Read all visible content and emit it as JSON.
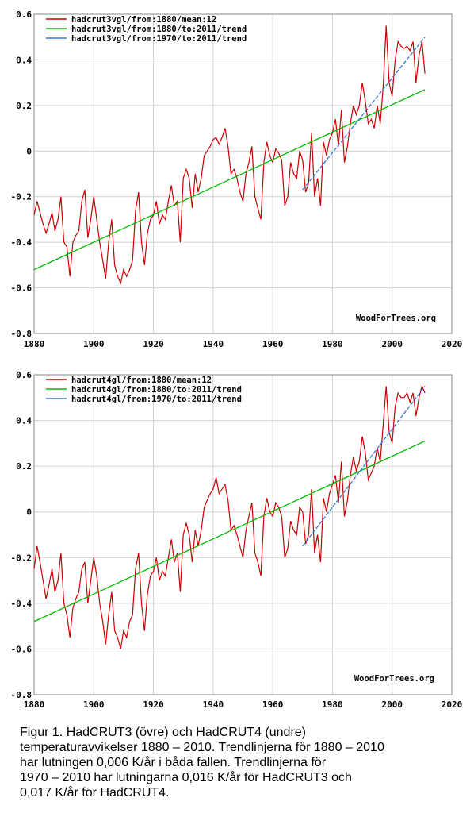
{
  "chart_data": [
    {
      "type": "line",
      "xlim": [
        1880,
        2020
      ],
      "ylim": [
        -0.8,
        0.6
      ],
      "x_ticks": [
        "1880",
        "1900",
        "1920",
        "1940",
        "1960",
        "1980",
        "2000",
        "2020"
      ],
      "y_ticks": [
        "0.6",
        "0.4",
        "0.2",
        "0",
        "-0.2",
        "-0.4",
        "-0.6",
        "-0.8"
      ],
      "grid": true,
      "legend_position": "top-left",
      "watermark": "WoodForTrees.org",
      "series": [
        {
          "name": "hadcrut3vgl/from:1880/mean:12",
          "color": "#cc0000",
          "x": [
            1880,
            1881,
            1882,
            1883,
            1884,
            1885,
            1886,
            1887,
            1888,
            1889,
            1890,
            1891,
            1892,
            1893,
            1894,
            1895,
            1896,
            1897,
            1898,
            1899,
            1900,
            1901,
            1902,
            1903,
            1904,
            1905,
            1906,
            1907,
            1908,
            1909,
            1910,
            1911,
            1912,
            1913,
            1914,
            1915,
            1916,
            1917,
            1918,
            1919,
            1920,
            1921,
            1922,
            1923,
            1924,
            1925,
            1926,
            1927,
            1928,
            1929,
            1930,
            1931,
            1932,
            1933,
            1934,
            1935,
            1936,
            1937,
            1938,
            1939,
            1940,
            1941,
            1942,
            1943,
            1944,
            1945,
            1946,
            1947,
            1948,
            1949,
            1950,
            1951,
            1952,
            1953,
            1954,
            1955,
            1956,
            1957,
            1958,
            1959,
            1960,
            1961,
            1962,
            1963,
            1964,
            1965,
            1966,
            1967,
            1968,
            1969,
            1970,
            1971,
            1972,
            1973,
            1974,
            1975,
            1976,
            1977,
            1978,
            1979,
            1980,
            1981,
            1982,
            1983,
            1984,
            1985,
            1986,
            1987,
            1988,
            1989,
            1990,
            1991,
            1992,
            1993,
            1994,
            1995,
            1996,
            1997,
            1998,
            1999,
            2000,
            2001,
            2002,
            2003,
            2004,
            2005,
            2006,
            2007,
            2008,
            2009,
            2010,
            2011
          ],
          "values": [
            -0.28,
            -0.22,
            -0.27,
            -0.32,
            -0.36,
            -0.32,
            -0.27,
            -0.35,
            -0.3,
            -0.2,
            -0.4,
            -0.42,
            -0.55,
            -0.4,
            -0.37,
            -0.35,
            -0.22,
            -0.17,
            -0.38,
            -0.3,
            -0.2,
            -0.3,
            -0.4,
            -0.48,
            -0.56,
            -0.4,
            -0.3,
            -0.5,
            -0.55,
            -0.58,
            -0.52,
            -0.55,
            -0.52,
            -0.48,
            -0.26,
            -0.18,
            -0.4,
            -0.5,
            -0.36,
            -0.3,
            -0.28,
            -0.22,
            -0.32,
            -0.28,
            -0.3,
            -0.22,
            -0.15,
            -0.24,
            -0.22,
            -0.4,
            -0.12,
            -0.08,
            -0.12,
            -0.25,
            -0.1,
            -0.18,
            -0.12,
            -0.02,
            0.0,
            0.02,
            0.05,
            0.06,
            0.03,
            0.06,
            0.1,
            0.02,
            -0.1,
            -0.08,
            -0.12,
            -0.18,
            -0.22,
            -0.1,
            -0.05,
            0.02,
            -0.2,
            -0.25,
            -0.3,
            -0.05,
            0.04,
            -0.02,
            -0.05,
            0.01,
            -0.01,
            -0.04,
            -0.24,
            -0.2,
            -0.05,
            -0.1,
            -0.12,
            0.0,
            -0.04,
            -0.18,
            -0.14,
            0.08,
            -0.2,
            -0.12,
            -0.24,
            0.04,
            -0.02,
            0.05,
            0.08,
            0.14,
            0.02,
            0.18,
            -0.05,
            0.02,
            0.12,
            0.2,
            0.16,
            0.2,
            0.3,
            0.22,
            0.12,
            0.14,
            0.1,
            0.2,
            0.12,
            0.28,
            0.55,
            0.3,
            0.24,
            0.4,
            0.48,
            0.46,
            0.45,
            0.46,
            0.44,
            0.48,
            0.3,
            0.42,
            0.48,
            0.34
          ]
        },
        {
          "name": "hadcrut3vgl/from:1880/to:2011/trend",
          "color": "#00bb00",
          "x": [
            1880,
            2011
          ],
          "values": [
            -0.52,
            0.27
          ]
        },
        {
          "name": "hadcrut3vgl/from:1970/to:2011/trend",
          "color": "#3377dd",
          "x": [
            1970,
            2011
          ],
          "values": [
            -0.17,
            0.5
          ]
        }
      ]
    },
    {
      "type": "line",
      "xlim": [
        1880,
        2020
      ],
      "ylim": [
        -0.8,
        0.6
      ],
      "x_ticks": [
        "1880",
        "1900",
        "1920",
        "1940",
        "1960",
        "1980",
        "2000",
        "2020"
      ],
      "y_ticks": [
        "0.6",
        "0.4",
        "0.2",
        "0",
        "-0.2",
        "-0.4",
        "-0.6",
        "-0.8"
      ],
      "grid": true,
      "legend_position": "top-left",
      "watermark": "WoodForTrees.org",
      "series": [
        {
          "name": "hadcrut4gl/from:1880/mean:12",
          "color": "#cc0000",
          "x": [
            1880,
            1881,
            1882,
            1883,
            1884,
            1885,
            1886,
            1887,
            1888,
            1889,
            1890,
            1891,
            1892,
            1893,
            1894,
            1895,
            1896,
            1897,
            1898,
            1899,
            1900,
            1901,
            1902,
            1903,
            1904,
            1905,
            1906,
            1907,
            1908,
            1909,
            1910,
            1911,
            1912,
            1913,
            1914,
            1915,
            1916,
            1917,
            1918,
            1919,
            1920,
            1921,
            1922,
            1923,
            1924,
            1925,
            1926,
            1927,
            1928,
            1929,
            1930,
            1931,
            1932,
            1933,
            1934,
            1935,
            1936,
            1937,
            1938,
            1939,
            1940,
            1941,
            1942,
            1943,
            1944,
            1945,
            1946,
            1947,
            1948,
            1949,
            1950,
            1951,
            1952,
            1953,
            1954,
            1955,
            1956,
            1957,
            1958,
            1959,
            1960,
            1961,
            1962,
            1963,
            1964,
            1965,
            1966,
            1967,
            1968,
            1969,
            1970,
            1971,
            1972,
            1973,
            1974,
            1975,
            1976,
            1977,
            1978,
            1979,
            1980,
            1981,
            1982,
            1983,
            1984,
            1985,
            1986,
            1987,
            1988,
            1989,
            1990,
            1991,
            1992,
            1993,
            1994,
            1995,
            1996,
            1997,
            1998,
            1999,
            2000,
            2001,
            2002,
            2003,
            2004,
            2005,
            2006,
            2007,
            2008,
            2009,
            2010,
            2011
          ],
          "values": [
            -0.25,
            -0.15,
            -0.22,
            -0.3,
            -0.38,
            -0.32,
            -0.25,
            -0.35,
            -0.3,
            -0.18,
            -0.4,
            -0.45,
            -0.55,
            -0.42,
            -0.38,
            -0.35,
            -0.25,
            -0.22,
            -0.4,
            -0.3,
            -0.2,
            -0.28,
            -0.4,
            -0.48,
            -0.58,
            -0.45,
            -0.35,
            -0.52,
            -0.55,
            -0.6,
            -0.52,
            -0.55,
            -0.48,
            -0.45,
            -0.25,
            -0.18,
            -0.4,
            -0.52,
            -0.36,
            -0.28,
            -0.26,
            -0.2,
            -0.3,
            -0.26,
            -0.28,
            -0.2,
            -0.12,
            -0.22,
            -0.18,
            -0.35,
            -0.1,
            -0.05,
            -0.1,
            -0.22,
            -0.08,
            -0.15,
            -0.08,
            0.02,
            0.05,
            0.08,
            0.1,
            0.15,
            0.08,
            0.1,
            0.12,
            0.05,
            -0.08,
            -0.06,
            -0.1,
            -0.15,
            -0.2,
            -0.08,
            -0.02,
            0.04,
            -0.18,
            -0.22,
            -0.28,
            -0.02,
            0.06,
            0.0,
            -0.02,
            0.04,
            0.02,
            -0.02,
            -0.2,
            -0.16,
            -0.04,
            -0.08,
            -0.1,
            0.02,
            0.0,
            -0.14,
            -0.1,
            0.1,
            -0.18,
            -0.1,
            -0.22,
            0.06,
            0.0,
            0.08,
            0.12,
            0.16,
            0.04,
            0.22,
            -0.02,
            0.05,
            0.16,
            0.24,
            0.18,
            0.22,
            0.33,
            0.26,
            0.14,
            0.17,
            0.2,
            0.28,
            0.22,
            0.38,
            0.55,
            0.35,
            0.3,
            0.46,
            0.52,
            0.5,
            0.5,
            0.52,
            0.48,
            0.52,
            0.42,
            0.5,
            0.55,
            0.52
          ]
        },
        {
          "name": "hadcrut4gl/from:1880/to:2011/trend",
          "color": "#00bb00",
          "x": [
            1880,
            2011
          ],
          "values": [
            -0.48,
            0.31
          ]
        },
        {
          "name": "hadcrut4gl/from:1970/to:2011/trend",
          "color": "#3377dd",
          "x": [
            1970,
            2011
          ],
          "values": [
            -0.15,
            0.55
          ]
        }
      ]
    }
  ],
  "caption": {
    "line1": "Figur 1. HadCRUT3 (övre) och HadCRUT4 (undre)",
    "line2": "temperaturavvikelser 1880 – 2010. Trendlinjerna för 1880 – 2010",
    "line3": "har lutningen 0,006 K/år i båda fallen. Trendlinjerna för",
    "line4": "1970 – 2010 har lutningarna 0,016 K/år för HadCRUT3 och",
    "line5": "0,017 K/år för HadCRUT4."
  }
}
